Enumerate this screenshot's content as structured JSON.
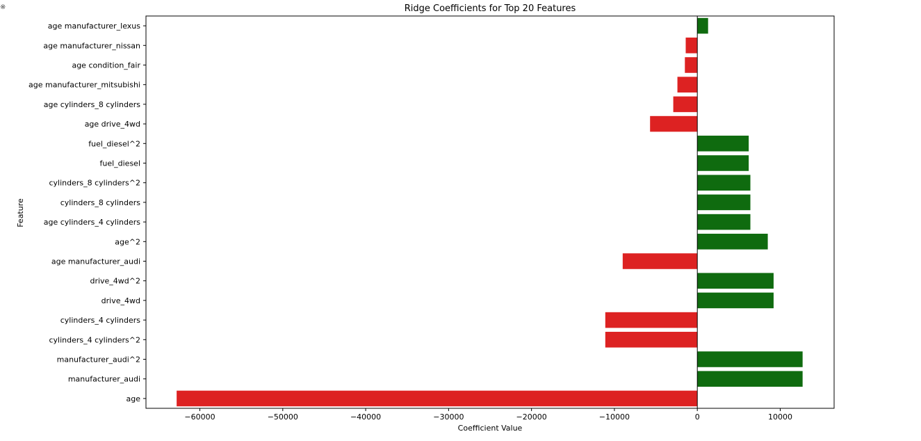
{
  "chart_data": {
    "type": "bar",
    "orientation": "horizontal",
    "title": "Ridge Coefficients for Top 20 Features",
    "xlabel": "Coefficient Value",
    "ylabel": "Feature",
    "xlim": [
      -66500,
      16500
    ],
    "xticks": [
      -60000,
      -50000,
      -40000,
      -30000,
      -20000,
      -10000,
      0,
      10000
    ],
    "xtick_labels": [
      "−60000",
      "−50000",
      "−40000",
      "−30000",
      "−20000",
      "−10000",
      "0",
      "10000"
    ],
    "grid": false,
    "positive_color": "#0f6b0f",
    "negative_color": "#dd2222",
    "categories": [
      "age manufacturer_lexus",
      "age manufacturer_nissan",
      "age condition_fair",
      "age manufacturer_mitsubishi",
      "age cylinders_8 cylinders",
      "age drive_4wd",
      "fuel_diesel^2",
      "fuel_diesel",
      "cylinders_8 cylinders^2",
      "cylinders_8 cylinders",
      "age cylinders_4 cylinders",
      "age^2",
      "age manufacturer_audi",
      "drive_4wd^2",
      "drive_4wd",
      "cylinders_4 cylinders",
      "cylinders_4 cylinders^2",
      "manufacturer_audi^2",
      "manufacturer_audi",
      "age"
    ],
    "values": [
      1300,
      -1400,
      -1500,
      -2400,
      -2900,
      -5700,
      6200,
      6200,
      6400,
      6400,
      6400,
      8500,
      -9000,
      9200,
      9200,
      -11100,
      -11100,
      12700,
      12700,
      -62800
    ]
  }
}
